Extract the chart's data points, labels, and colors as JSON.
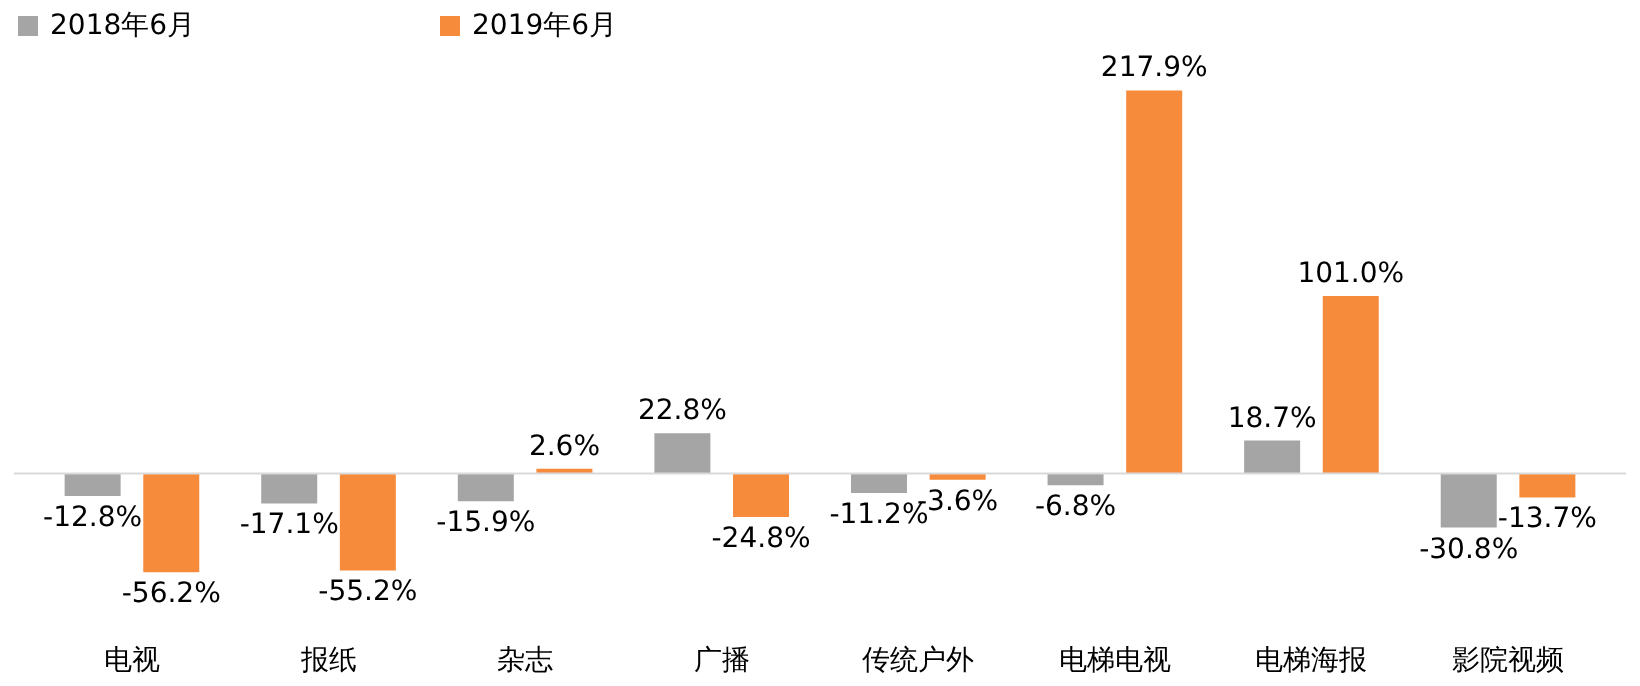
{
  "chart_data": {
    "type": "bar",
    "legend": "top",
    "categories": [
      "电视",
      "报纸",
      "杂志",
      "广播",
      "传统户外",
      "电梯电视",
      "电梯海报",
      "影院视频"
    ],
    "series": [
      {
        "name": "2018年6月",
        "color": "#a5a5a5",
        "values": [
          -12.8,
          -17.1,
          -15.9,
          22.8,
          -11.2,
          -6.8,
          18.7,
          -30.8
        ],
        "value_labels": [
          "-12.8%",
          "-17.1%",
          "-15.9%",
          "22.8%",
          "-11.2%",
          "-6.8%",
          "18.7%",
          "-30.8%"
        ]
      },
      {
        "name": "2019年6月",
        "color": "#f68b3c",
        "values": [
          -56.2,
          -55.2,
          2.6,
          -24.8,
          -3.6,
          217.9,
          101.0,
          -13.7
        ],
        "value_labels": [
          "-56.2%",
          "-55.2%",
          "2.6%",
          "-24.8%",
          "-3.6%",
          "217.9%",
          "101.0%",
          "-13.7%"
        ]
      }
    ]
  }
}
